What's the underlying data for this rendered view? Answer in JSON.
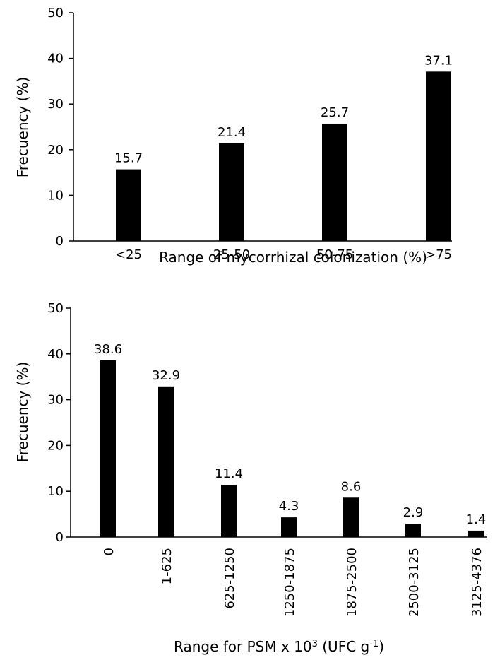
{
  "chart_data": [
    {
      "type": "bar",
      "categories": [
        "<25",
        "25-50",
        "50-75",
        ">75"
      ],
      "values": [
        15.7,
        21.4,
        25.7,
        37.1
      ],
      "data_labels": [
        "15.7",
        "21.4",
        "25.7",
        "37.1"
      ],
      "title": "",
      "xlabel": "Range of mycorrhizal colonization (%)",
      "ylabel": "Frecuency (%)",
      "ylim": [
        0,
        50
      ],
      "yticks": [
        "0",
        "10",
        "20",
        "30",
        "40",
        "50"
      ],
      "grid": false,
      "bar_color": "#000000"
    },
    {
      "type": "bar",
      "categories": [
        "0",
        "1-625",
        "625-1250",
        "1250-1875",
        "1875-2500",
        "2500-3125",
        "3125-4376"
      ],
      "values": [
        38.6,
        32.9,
        11.4,
        4.3,
        8.6,
        2.9,
        1.4
      ],
      "data_labels": [
        "38.6",
        "32.9",
        "11.4",
        "4.3",
        "8.6",
        "2.9",
        "1.4"
      ],
      "title": "",
      "xlabel": "Range for PSM x 10",
      "xlabel_sup": "3",
      "xlabel_unit": " (UFC g",
      "xlabel_unit_sup": "-1",
      "xlabel_end": ")",
      "ylabel": "Frecuency (%)",
      "ylim": [
        0,
        50
      ],
      "yticks": [
        "0",
        "10",
        "20",
        "30",
        "40",
        "50"
      ],
      "grid": false,
      "bar_color": "#000000"
    }
  ]
}
